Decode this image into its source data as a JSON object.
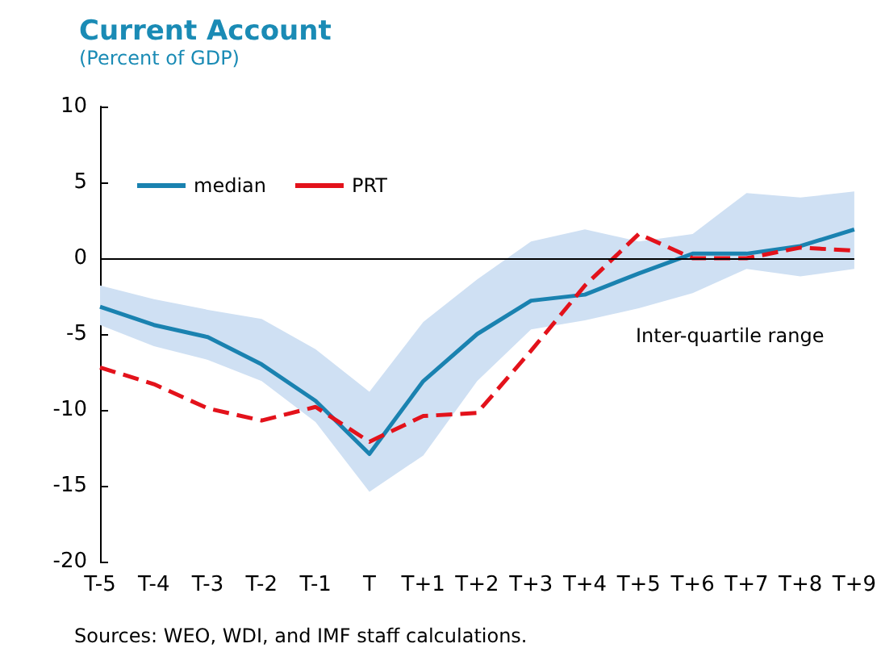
{
  "chart_data": {
    "type": "line",
    "title": "Current Account",
    "subtitle": "(Percent of GDP)",
    "categories": [
      "T-5",
      "T-4",
      "T-3",
      "T-2",
      "T-1",
      "T",
      "T+1",
      "T+2",
      "T+3",
      "T+4",
      "T+5",
      "T+6",
      "T+7",
      "T+8",
      "T+9"
    ],
    "series": [
      {
        "name": "median",
        "color": "#1a82b0",
        "line_style": "solid",
        "values": [
          -3.2,
          -4.4,
          -5.2,
          -7,
          -9.4,
          -12.9,
          -8.1,
          -5,
          -2.8,
          -2.4,
          -1,
          0.3,
          0.3,
          0.8,
          1.9
        ],
        "lower": [
          -4.4,
          -5.8,
          -6.7,
          -8.1,
          -10.8,
          -15.4,
          -13,
          -8.1,
          -4.7,
          -4.1,
          -3.3,
          -2.3,
          -0.7,
          -1.2,
          -0.7
        ],
        "upper": [
          -1.8,
          -2.7,
          -3.4,
          -4,
          -6,
          -8.8,
          -4.2,
          -1.4,
          1.1,
          1.9,
          1.1,
          1.6,
          4.3,
          4,
          4.4
        ]
      },
      {
        "name": "PRT",
        "color": "#e3121b",
        "line_style": "dashed",
        "values": [
          -7.2,
          -8.3,
          -9.9,
          -10.7,
          -9.8,
          -12.1,
          -10.4,
          -10.2,
          -6.1,
          -1.8,
          1.6,
          0,
          0,
          0.7,
          0.5
        ]
      }
    ],
    "ylim": [
      -20,
      10
    ],
    "yticks": [
      -20,
      -15,
      -10,
      -5,
      0,
      5,
      10
    ],
    "ref_lines": [
      {
        "axis": "y",
        "value": 0,
        "color": "#000000"
      }
    ],
    "annotations": [
      "Inter-quartile range",
      "Sources: WEO, WDI, and IMF staff calculations."
    ],
    "legend": "top left",
    "grid": false,
    "marker": "none"
  }
}
